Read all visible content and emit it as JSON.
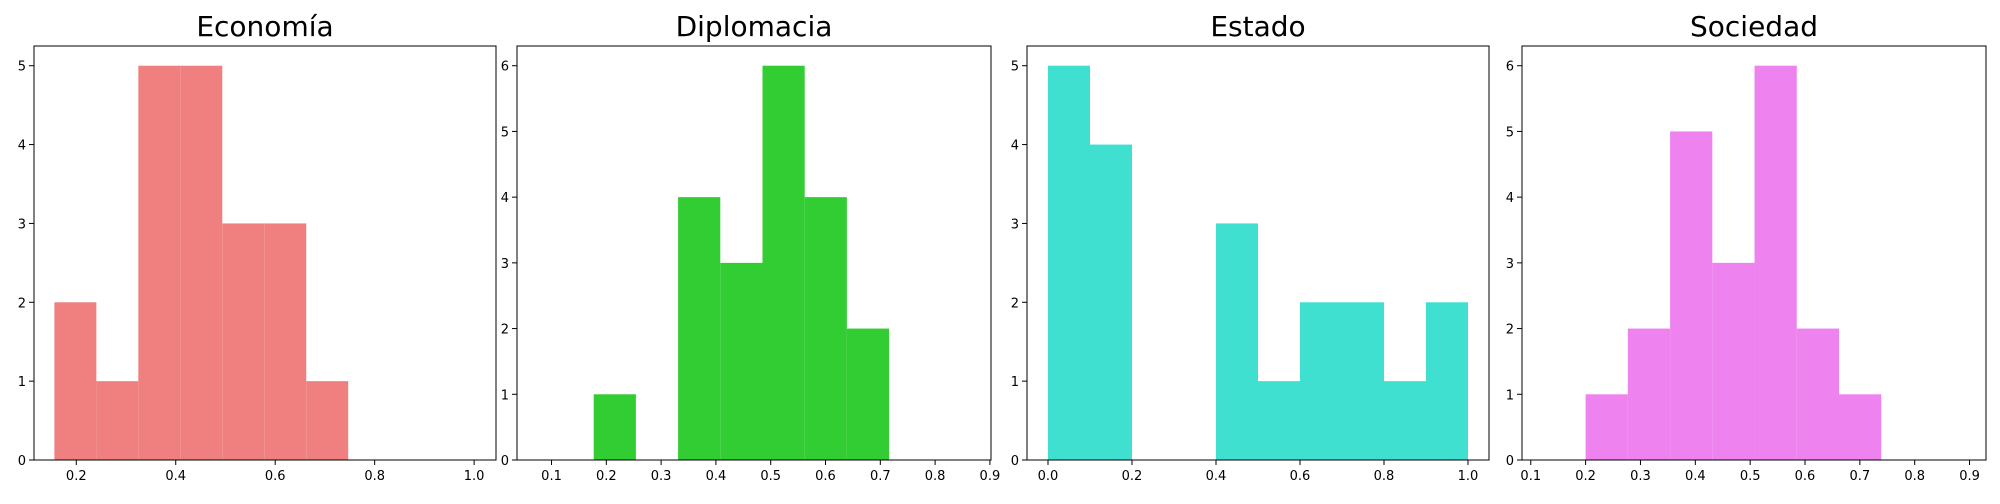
{
  "chart_data": [
    {
      "type": "histogram",
      "title": "Economía",
      "color": "#f08080",
      "bins": [
        0.156,
        0.2404,
        0.3248,
        0.4092,
        0.4936,
        0.578,
        0.6624,
        0.7468,
        0.8312,
        0.9156,
        1.0
      ],
      "values": [
        2,
        1,
        5,
        5,
        3,
        3,
        1,
        0,
        0,
        0
      ],
      "xlim": [
        0.115,
        1.044
      ],
      "ylim": [
        0,
        5.25
      ],
      "xticks": [
        0.2,
        0.4,
        0.6,
        0.8,
        {
          "value": 1.0,
          "label": "1.0"
        }
      ],
      "yticks": [
        0,
        1,
        2,
        3,
        4,
        5
      ]
    },
    {
      "type": "histogram",
      "title": "Diplomacia",
      "color": "#32cd32",
      "bins": [
        0.1,
        0.177,
        0.254,
        0.331,
        0.408,
        0.485,
        0.562,
        0.639,
        0.716,
        0.793,
        0.87
      ],
      "values": [
        0,
        1,
        0,
        4,
        3,
        6,
        4,
        2,
        0,
        0
      ],
      "xlim": [
        0.037,
        0.902
      ],
      "ylim": [
        0,
        6.3
      ],
      "xticks": [
        0.1,
        0.2,
        0.3,
        0.4,
        0.5,
        0.6,
        0.7,
        0.8,
        0.9
      ],
      "yticks": [
        0,
        1,
        2,
        3,
        4,
        5,
        6
      ]
    },
    {
      "type": "histogram",
      "title": "Estado",
      "color": "#40e0d0",
      "bins": [
        0,
        0.1,
        0.2,
        0.3,
        0.4,
        0.5,
        0.6,
        0.7,
        0.8,
        0.9,
        1
      ],
      "values": [
        5,
        4,
        0,
        0,
        3,
        1,
        2,
        2,
        1,
        2
      ],
      "xlim": [
        -0.05,
        1.05
      ],
      "ylim": [
        0,
        5.25
      ],
      "xticks": [
        {
          "value": 0,
          "label": "0.0"
        },
        0.2,
        0.4,
        0.6,
        0.8,
        {
          "value": 1,
          "label": "1.0"
        }
      ],
      "yticks": [
        0,
        1,
        2,
        3,
        4,
        5
      ]
    },
    {
      "type": "histogram",
      "title": "Sociedad",
      "color": "#ee82ee",
      "bins": [
        0.2,
        0.277,
        0.354,
        0.431,
        0.508,
        0.585,
        0.662,
        0.739
      ],
      "values": [
        1,
        2,
        5,
        3,
        6,
        2,
        1
      ],
      "xlim": [
        0.084,
        0.93
      ],
      "ylim": [
        0,
        6.3
      ],
      "xticks": [
        0.1,
        0.2,
        0.3,
        0.4,
        0.5,
        0.6,
        0.7,
        0.8,
        0.9
      ],
      "yticks": [
        0,
        1,
        2,
        3,
        4,
        5,
        6
      ]
    }
  ]
}
